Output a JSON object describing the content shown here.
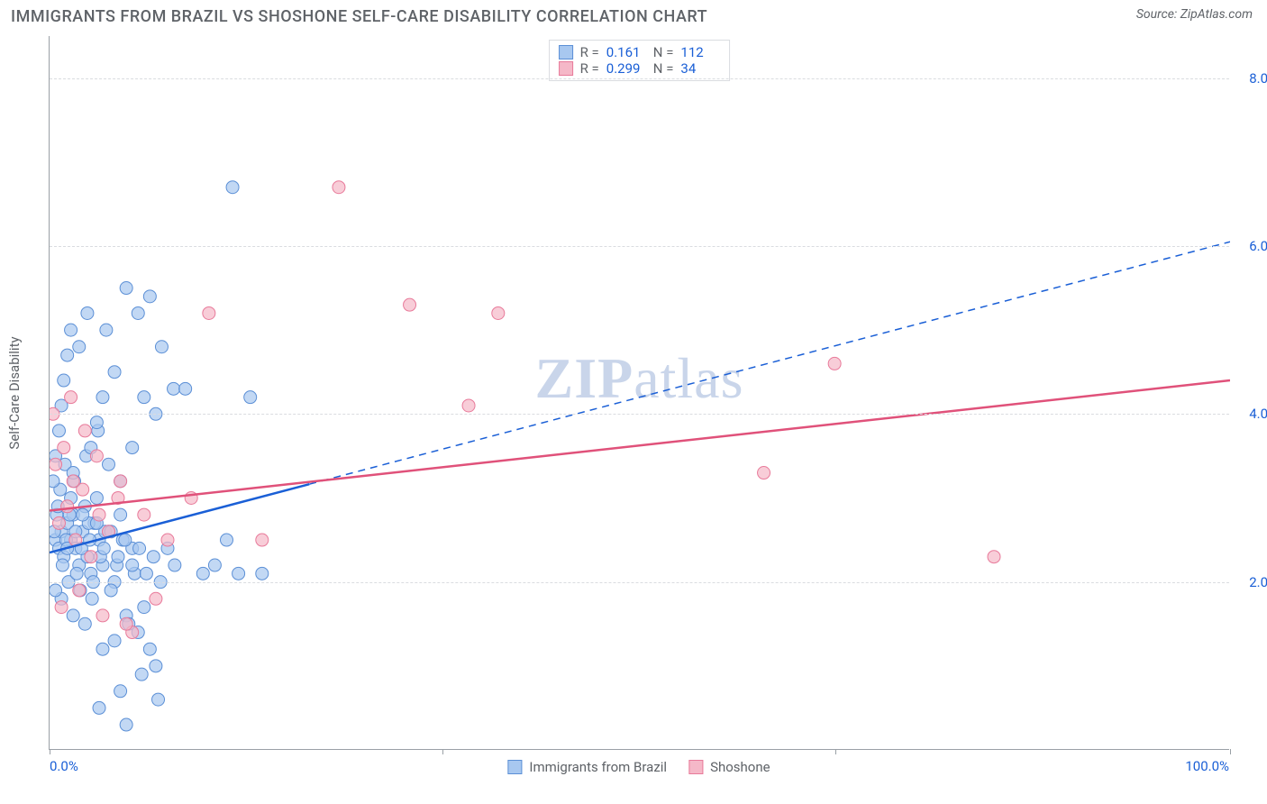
{
  "header": {
    "title": "IMMIGRANTS FROM BRAZIL VS SHOSHONE SELF-CARE DISABILITY CORRELATION CHART",
    "source": "Source: ZipAtlas.com"
  },
  "chart": {
    "type": "scatter",
    "ylabel": "Self-Care Disability",
    "xlim": [
      0,
      100
    ],
    "ylim": [
      0,
      8.5
    ],
    "background_color": "#ffffff",
    "grid_color": "#dadce0",
    "axis_color": "#9aa0a6",
    "yticks": [
      {
        "val": 2.0,
        "label": "2.0%"
      },
      {
        "val": 4.0,
        "label": "4.0%"
      },
      {
        "val": 6.0,
        "label": "6.0%"
      },
      {
        "val": 8.0,
        "label": "8.0%"
      }
    ],
    "xticks_major": [
      0,
      33.3,
      66.6,
      100
    ],
    "xtick_labels": [
      {
        "val": 0,
        "label": "0.0%",
        "align": "left"
      },
      {
        "val": 100,
        "label": "100.0%",
        "align": "right"
      }
    ],
    "watermark": "ZIPatlas",
    "series": [
      {
        "id": "brazil",
        "label": "Immigrants from Brazil",
        "fill_color": "#a8c8f0",
        "stroke_color": "#5b8fd6",
        "line_color": "#1a5fd6",
        "marker_radius": 7,
        "marker_opacity": 0.7,
        "regression": {
          "x1": 0,
          "y1": 2.35,
          "x2": 100,
          "y2": 6.05,
          "solid_until_x": 22
        },
        "stats": {
          "R": "0.161",
          "N": "112"
        },
        "points": [
          [
            0.5,
            2.5
          ],
          [
            0.8,
            2.4
          ],
          [
            1.0,
            2.6
          ],
          [
            1.2,
            2.3
          ],
          [
            1.5,
            2.7
          ],
          [
            1.8,
            2.5
          ],
          [
            2.0,
            2.8
          ],
          [
            2.2,
            2.4
          ],
          [
            2.5,
            2.2
          ],
          [
            2.8,
            2.6
          ],
          [
            3.0,
            2.9
          ],
          [
            3.2,
            2.3
          ],
          [
            3.5,
            2.1
          ],
          [
            3.8,
            2.7
          ],
          [
            4.0,
            3.0
          ],
          [
            4.2,
            2.5
          ],
          [
            0.6,
            2.8
          ],
          [
            0.9,
            3.1
          ],
          [
            1.3,
            3.4
          ],
          [
            1.6,
            2.0
          ],
          [
            2.1,
            3.2
          ],
          [
            2.6,
            1.9
          ],
          [
            3.1,
            3.5
          ],
          [
            3.6,
            1.8
          ],
          [
            4.1,
            3.8
          ],
          [
            4.5,
            2.2
          ],
          [
            5.0,
            2.6
          ],
          [
            5.5,
            2.0
          ],
          [
            6.0,
            2.8
          ],
          [
            6.5,
            1.6
          ],
          [
            7.0,
            2.4
          ],
          [
            7.5,
            1.4
          ],
          [
            0.4,
            2.6
          ],
          [
            0.7,
            2.9
          ],
          [
            1.1,
            2.2
          ],
          [
            1.4,
            2.5
          ],
          [
            1.7,
            2.8
          ],
          [
            2.3,
            2.1
          ],
          [
            2.7,
            2.4
          ],
          [
            3.3,
            2.7
          ],
          [
            3.7,
            2.0
          ],
          [
            4.3,
            2.3
          ],
          [
            4.7,
            2.6
          ],
          [
            5.2,
            1.9
          ],
          [
            5.7,
            2.2
          ],
          [
            6.2,
            2.5
          ],
          [
            6.7,
            1.5
          ],
          [
            7.2,
            2.1
          ],
          [
            0.3,
            3.2
          ],
          [
            0.5,
            3.5
          ],
          [
            0.8,
            3.8
          ],
          [
            1.0,
            4.1
          ],
          [
            1.2,
            4.4
          ],
          [
            1.5,
            4.7
          ],
          [
            1.8,
            3.0
          ],
          [
            2.0,
            3.3
          ],
          [
            3.5,
            3.6
          ],
          [
            4.0,
            3.9
          ],
          [
            4.5,
            4.2
          ],
          [
            5.0,
            3.4
          ],
          [
            6.0,
            3.2
          ],
          [
            7.0,
            3.6
          ],
          [
            8.0,
            4.2
          ],
          [
            9.0,
            4.0
          ],
          [
            7.5,
            5.2
          ],
          [
            8.5,
            5.4
          ],
          [
            9.5,
            4.8
          ],
          [
            10.5,
            4.3
          ],
          [
            11.5,
            4.3
          ],
          [
            13.0,
            2.1
          ],
          [
            14.0,
            2.2
          ],
          [
            15.0,
            2.5
          ],
          [
            16.0,
            2.1
          ],
          [
            17.0,
            4.2
          ],
          [
            18.0,
            2.1
          ],
          [
            15.5,
            6.7
          ],
          [
            6.5,
            5.5
          ],
          [
            5.5,
            4.5
          ],
          [
            4.8,
            5.0
          ],
          [
            3.2,
            5.2
          ],
          [
            2.5,
            4.8
          ],
          [
            1.8,
            5.0
          ],
          [
            7.8,
            0.9
          ],
          [
            8.5,
            1.2
          ],
          [
            9.2,
            0.6
          ],
          [
            6.0,
            0.7
          ],
          [
            4.5,
            1.2
          ],
          [
            3.0,
            1.5
          ],
          [
            2.0,
            1.6
          ],
          [
            1.0,
            1.8
          ],
          [
            0.5,
            1.9
          ],
          [
            5.5,
            1.3
          ],
          [
            8.0,
            1.7
          ],
          [
            9.0,
            1.0
          ],
          [
            6.5,
            0.3
          ],
          [
            4.2,
            0.5
          ],
          [
            1.5,
            2.4
          ],
          [
            2.2,
            2.6
          ],
          [
            2.8,
            2.8
          ],
          [
            3.4,
            2.5
          ],
          [
            4.0,
            2.7
          ],
          [
            4.6,
            2.4
          ],
          [
            5.2,
            2.6
          ],
          [
            5.8,
            2.3
          ],
          [
            6.4,
            2.5
          ],
          [
            7.0,
            2.2
          ],
          [
            7.6,
            2.4
          ],
          [
            8.2,
            2.1
          ],
          [
            8.8,
            2.3
          ],
          [
            9.4,
            2.0
          ],
          [
            10.0,
            2.4
          ],
          [
            10.6,
            2.2
          ]
        ]
      },
      {
        "id": "shoshone",
        "label": "Shoshone",
        "fill_color": "#f5b8c8",
        "stroke_color": "#e87a9a",
        "line_color": "#e0517a",
        "marker_radius": 7,
        "marker_opacity": 0.7,
        "regression": {
          "x1": 0,
          "y1": 2.85,
          "x2": 100,
          "y2": 4.4,
          "solid_until_x": 100
        },
        "stats": {
          "R": "0.299",
          "N": "34"
        },
        "points": [
          [
            0.8,
            2.7
          ],
          [
            1.5,
            2.9
          ],
          [
            2.2,
            2.5
          ],
          [
            2.8,
            3.1
          ],
          [
            3.5,
            2.3
          ],
          [
            4.2,
            2.8
          ],
          [
            5.0,
            2.6
          ],
          [
            5.8,
            3.0
          ],
          [
            0.5,
            3.4
          ],
          [
            1.2,
            3.6
          ],
          [
            2.0,
            3.2
          ],
          [
            3.0,
            3.8
          ],
          [
            4.0,
            3.5
          ],
          [
            6.0,
            3.2
          ],
          [
            8.0,
            2.8
          ],
          [
            10.0,
            2.5
          ],
          [
            1.0,
            1.7
          ],
          [
            2.5,
            1.9
          ],
          [
            4.5,
            1.6
          ],
          [
            7.0,
            1.4
          ],
          [
            12.0,
            3.0
          ],
          [
            13.5,
            5.2
          ],
          [
            18.0,
            2.5
          ],
          [
            24.5,
            6.7
          ],
          [
            30.5,
            5.3
          ],
          [
            35.5,
            4.1
          ],
          [
            38.0,
            5.2
          ],
          [
            60.5,
            3.3
          ],
          [
            66.5,
            4.6
          ],
          [
            80.0,
            2.3
          ],
          [
            0.3,
            4.0
          ],
          [
            1.8,
            4.2
          ],
          [
            6.5,
            1.5
          ],
          [
            9.0,
            1.8
          ]
        ]
      }
    ]
  }
}
